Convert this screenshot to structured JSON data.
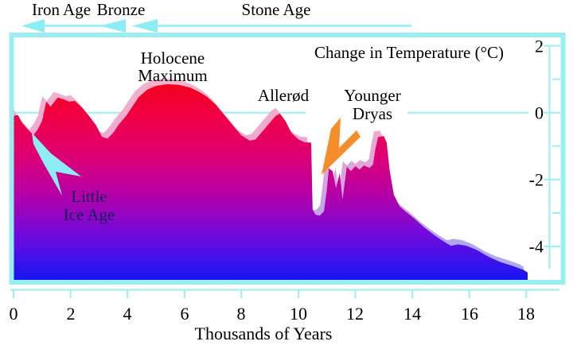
{
  "era_bar": {
    "iron_age": "Iron Age",
    "bronze": "Bronze",
    "stone_age": "Stone Age"
  },
  "chart_data": {
    "type": "area",
    "title": "Change in Temperature (°C)",
    "xlabel": "Thousands of Years",
    "x_tick_labels": [
      "0",
      "2",
      "4",
      "6",
      "8",
      "10",
      "12",
      "14",
      "16",
      "18"
    ],
    "x_ticks": [
      0,
      2,
      4,
      6,
      8,
      10,
      12,
      14,
      16,
      18
    ],
    "y_tick_labels": [
      "2",
      "0",
      "-2",
      "-4"
    ],
    "y_major_ticks": [
      2,
      0,
      -2,
      -4
    ],
    "y_minor_ticks": [
      1,
      -1,
      -3
    ],
    "xlim": [
      0,
      19.25
    ],
    "ylim": [
      -5,
      2.25
    ],
    "zero_line": 0,
    "grid": "zero-line-only",
    "legend": "none",
    "annotations": [
      {
        "id": "holocene-maximum",
        "lines": [
          "Holocene",
          "Maximum"
        ]
      },
      {
        "id": "allerod",
        "lines": [
          "Allerød"
        ]
      },
      {
        "id": "younger-dryas",
        "lines": [
          "Younger",
          "Dryas"
        ]
      },
      {
        "id": "little-ice-age",
        "lines": [
          "Little",
          "Ice Age"
        ]
      }
    ],
    "series": [
      {
        "name": "temperature_change_c",
        "points": [
          [
            0,
            -0.1
          ],
          [
            0.15,
            -0.07
          ],
          [
            0.3,
            -0.3
          ],
          [
            0.5,
            -0.5
          ],
          [
            0.7,
            -0.67
          ],
          [
            0.85,
            -0.5
          ],
          [
            1.0,
            -0.25
          ],
          [
            1.15,
            0.33
          ],
          [
            1.3,
            0.18
          ],
          [
            1.55,
            0.45
          ],
          [
            1.75,
            0.4
          ],
          [
            1.95,
            0.33
          ],
          [
            2.15,
            0.35
          ],
          [
            2.4,
            0.15
          ],
          [
            2.65,
            -0.1
          ],
          [
            2.9,
            -0.38
          ],
          [
            3.1,
            -0.72
          ],
          [
            3.3,
            -0.78
          ],
          [
            3.5,
            -0.6
          ],
          [
            3.7,
            -0.35
          ],
          [
            3.95,
            -0.1
          ],
          [
            4.15,
            0.15
          ],
          [
            4.4,
            0.47
          ],
          [
            4.7,
            0.69
          ],
          [
            5.0,
            0.8
          ],
          [
            5.4,
            0.85
          ],
          [
            5.8,
            0.83
          ],
          [
            6.2,
            0.75
          ],
          [
            6.5,
            0.63
          ],
          [
            6.8,
            0.47
          ],
          [
            7.1,
            0.24
          ],
          [
            7.4,
            -0.07
          ],
          [
            7.7,
            -0.38
          ],
          [
            8.0,
            -0.68
          ],
          [
            8.3,
            -0.84
          ],
          [
            8.5,
            -0.8
          ],
          [
            8.7,
            -0.6
          ],
          [
            9.0,
            -0.3
          ],
          [
            9.2,
            -0.1
          ],
          [
            9.35,
            -0.03
          ],
          [
            9.55,
            -0.25
          ],
          [
            9.75,
            -0.6
          ],
          [
            10.0,
            -0.8
          ],
          [
            10.2,
            -0.88
          ],
          [
            10.45,
            -0.9
          ],
          [
            10.5,
            -2.9
          ],
          [
            10.6,
            -3.05
          ],
          [
            10.75,
            -3.08
          ],
          [
            10.9,
            -2.95
          ],
          [
            11.0,
            -2.3
          ],
          [
            11.07,
            -1.67
          ],
          [
            11.2,
            -1.75
          ],
          [
            11.32,
            -2.26
          ],
          [
            11.45,
            -1.81
          ],
          [
            11.55,
            -2.6
          ],
          [
            11.7,
            -1.62
          ],
          [
            11.85,
            -1.75
          ],
          [
            12.0,
            -1.6
          ],
          [
            12.15,
            -1.7
          ],
          [
            12.3,
            -1.58
          ],
          [
            12.5,
            -1.65
          ],
          [
            12.62,
            -1.55
          ],
          [
            12.7,
            -1.1
          ],
          [
            12.8,
            -0.73
          ],
          [
            13.0,
            -0.7
          ],
          [
            13.1,
            -0.9
          ],
          [
            13.2,
            -1.7
          ],
          [
            13.35,
            -2.45
          ],
          [
            13.55,
            -2.8
          ],
          [
            13.75,
            -2.95
          ],
          [
            14.05,
            -3.15
          ],
          [
            14.4,
            -3.42
          ],
          [
            14.8,
            -3.68
          ],
          [
            15.1,
            -3.85
          ],
          [
            15.35,
            -3.98
          ],
          [
            15.6,
            -3.94
          ],
          [
            15.9,
            -3.98
          ],
          [
            16.25,
            -4.1
          ],
          [
            16.7,
            -4.32
          ],
          [
            17.1,
            -4.47
          ],
          [
            17.5,
            -4.58
          ],
          [
            17.9,
            -4.7
          ],
          [
            18.05,
            -4.78
          ]
        ]
      }
    ]
  },
  "colors": {
    "frame_cyan": "#9aeef2",
    "arrow_cyan": "#8ceef4",
    "arrow_orange": "#f48e2c",
    "label_navy": "#1a1a5c",
    "text": "#000000",
    "area_gradient": [
      [
        0,
        "#ff0a0a"
      ],
      [
        0.2,
        "#f4001e"
      ],
      [
        0.35,
        "#ee004c"
      ],
      [
        0.5,
        "#dc0078"
      ],
      [
        0.65,
        "#b400a8"
      ],
      [
        0.82,
        "#6e0ade"
      ],
      [
        1,
        "#1616f2"
      ]
    ],
    "shadow_gradient": [
      [
        0,
        "#fabbcb"
      ],
      [
        0.45,
        "#eda9cf"
      ],
      [
        0.65,
        "#d2a5e2"
      ],
      [
        0.85,
        "#b2a5f0"
      ],
      [
        1,
        "#a8acf5"
      ]
    ]
  }
}
